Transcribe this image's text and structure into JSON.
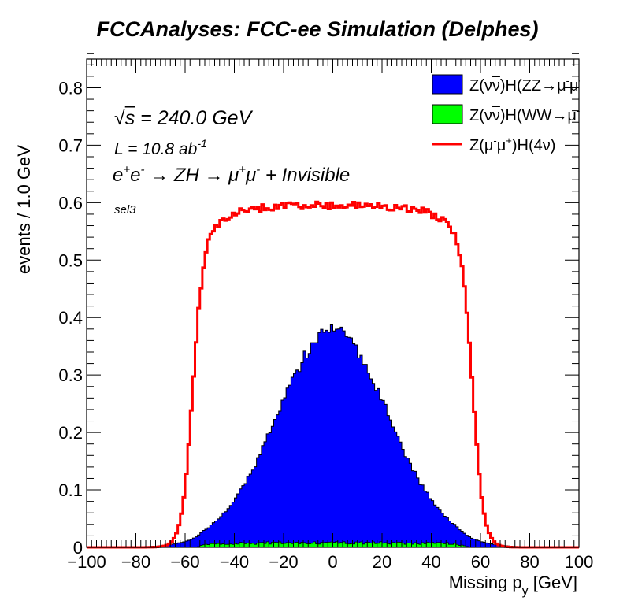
{
  "chart_data": {
    "type": "histogram",
    "title": "FCCAnalyses: FCC-ee Simulation (Delphes)",
    "xlabel": "Missing p_y [GeV]",
    "ylabel": "events / 1.0 GeV",
    "xlim": [
      -100,
      100
    ],
    "ylim": [
      0,
      0.85
    ],
    "bin_width": 1.0,
    "x_ticks": [
      "−100",
      "−80",
      "−60",
      "−40",
      "−20",
      "0",
      "20",
      "40",
      "60",
      "80",
      "100"
    ],
    "y_ticks": [
      "0",
      "0.1",
      "0.2",
      "0.3",
      "0.4",
      "0.5",
      "0.6",
      "0.7",
      "0.8"
    ],
    "annotations": {
      "sqrt_s": "√s = 240.0 GeV",
      "lumi": "L = 10.8 ab⁻¹",
      "process": "e⁺e⁻ → ZH → μ⁺μ⁻ + Invisible",
      "selection": "sel3"
    },
    "legend_position": "top-right",
    "series": [
      {
        "name": "Z(νν̅)H(ZZ→μ⁻μ⁺νν̅)",
        "kind": "stacked-fill",
        "color": "#0000ff",
        "profile": "gaussian",
        "peak_x": 0,
        "peak_y": 0.37,
        "sigma": 22.5,
        "range": [
          -75,
          75
        ],
        "sample_points": [
          [
            -60,
            0.028
          ],
          [
            -40,
            0.12
          ],
          [
            -20,
            0.29
          ],
          [
            0,
            0.37
          ],
          [
            20,
            0.3
          ],
          [
            40,
            0.12
          ],
          [
            60,
            0.028
          ]
        ]
      },
      {
        "name": "Z(νν̅)H(WW→μ⁻ν̅μ⁺ν)",
        "kind": "stacked-fill",
        "color": "#00ff00",
        "profile": "flat",
        "level": 0.008,
        "range": [
          -56,
          56
        ],
        "sample_points": [
          [
            -40,
            0.006
          ],
          [
            -20,
            0.008
          ],
          [
            0,
            0.009
          ],
          [
            20,
            0.008
          ],
          [
            40,
            0.006
          ]
        ]
      },
      {
        "name": "Z(μ⁻μ⁺)H(4ν)",
        "kind": "line",
        "color": "#ff0000",
        "profile": "plateau",
        "plateau": 0.595,
        "edges": [
          -57,
          57
        ],
        "rise_width": 2.2,
        "sample_points": [
          [
            -56,
            0.05
          ],
          [
            -50,
            0.52
          ],
          [
            -40,
            0.565
          ],
          [
            -20,
            0.59
          ],
          [
            0,
            0.598
          ],
          [
            20,
            0.592
          ],
          [
            40,
            0.565
          ],
          [
            50,
            0.52
          ],
          [
            56,
            0.05
          ]
        ]
      }
    ]
  }
}
